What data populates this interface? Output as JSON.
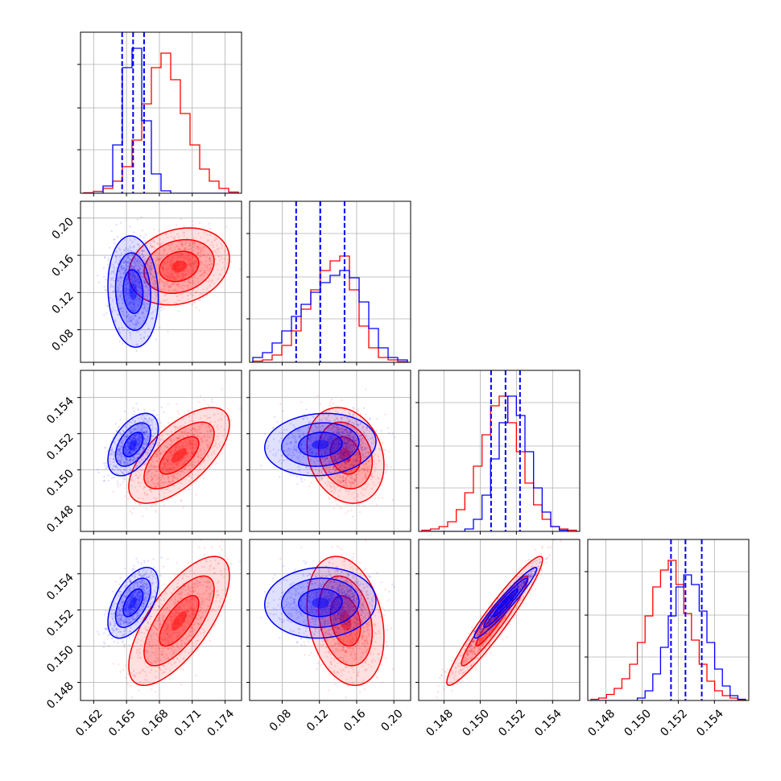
{
  "chart_data": {
    "type": "corner",
    "grid": true,
    "colors": {
      "red": "#ff0000",
      "blue": "#0000ff",
      "grid": "#b0b0b0",
      "axes": "#000000"
    },
    "series": [
      {
        "color": "red",
        "means": [
          0.1698,
          0.148,
          0.1508,
          0.1514
        ],
        "stds": [
          0.002,
          0.018,
          0.00115,
          0.00155
        ],
        "rho": [
          [
            1,
            0.2,
            0.65,
            0.7
          ],
          [
            0.2,
            1,
            -0.2,
            -0.25
          ],
          [
            0.65,
            -0.2,
            1,
            0.95
          ],
          [
            0.7,
            -0.25,
            0.95,
            1
          ]
        ],
        "hist": [
          [
            0.2,
            0.8,
            2,
            5,
            11,
            22,
            37,
            52,
            58,
            47,
            33,
            20,
            10,
            5,
            2,
            0.5
          ],
          [
            0.5,
            1,
            3,
            7,
            13,
            22,
            30,
            38,
            42,
            44,
            30,
            15,
            6,
            2,
            1,
            0.3
          ],
          [
            0.5,
            1,
            2,
            4,
            9,
            16,
            27,
            40,
            52,
            56,
            45,
            33,
            20,
            11,
            5,
            2,
            1,
            0.5
          ],
          [
            0.5,
            1,
            2.5,
            5,
            9,
            15,
            24,
            35,
            47,
            54,
            58,
            48,
            36,
            25,
            15,
            8,
            4,
            2,
            1,
            0.4
          ]
        ]
      },
      {
        "color": "blue",
        "means": [
          0.1656,
          0.121,
          0.1514,
          0.1524
        ],
        "stds": [
          0.001,
          0.026,
          0.00075,
          0.00085
        ],
        "rho": [
          [
            1,
            -0.1,
            0.5,
            0.55
          ],
          [
            -0.1,
            1,
            0.1,
            0.05
          ],
          [
            0.5,
            0.1,
            1,
            0.96
          ],
          [
            0.55,
            0.05,
            0.96,
            1
          ]
        ],
        "hist": [
          [
            0,
            0,
            3,
            20,
            52,
            60,
            30,
            8,
            1,
            0,
            0,
            0,
            0,
            0,
            0,
            0
          ],
          [
            2,
            4,
            8,
            13,
            19,
            24,
            29,
            33,
            36,
            38,
            35,
            25,
            14,
            6,
            2,
            1
          ],
          [
            0,
            0,
            0,
            0,
            0,
            1,
            5,
            15,
            30,
            45,
            56,
            48,
            33,
            18,
            8,
            2,
            0.5,
            0
          ],
          [
            0,
            0,
            0,
            0,
            0,
            0,
            1,
            4,
            11,
            22,
            35,
            47,
            52,
            48,
            37,
            24,
            13,
            6,
            2,
            0.5
          ]
        ],
        "quantiles": [
          [
            0.1646,
            0.1656,
            0.1666
          ],
          [
            0.095,
            0.121,
            0.147
          ],
          [
            0.1506,
            0.1514,
            0.1522
          ],
          [
            0.1516,
            0.1524,
            0.1533
          ]
        ]
      }
    ],
    "params": [
      {
        "range": [
          0.1608,
          0.1755
        ],
        "ticks": [
          "0.162",
          "0.165",
          "0.168",
          "0.171",
          "0.174"
        ]
      },
      {
        "range": [
          0.045,
          0.218
        ],
        "ticks": [
          "0.08",
          "0.12",
          "0.16",
          "0.20"
        ]
      },
      {
        "range": [
          0.1466,
          0.1555
        ],
        "ticks": [
          "0.148",
          "0.150",
          "0.152",
          "0.154"
        ]
      },
      {
        "range": [
          0.147,
          0.1559
        ],
        "ticks": [
          "0.148",
          "0.150",
          "0.152",
          "0.154"
        ]
      }
    ]
  }
}
